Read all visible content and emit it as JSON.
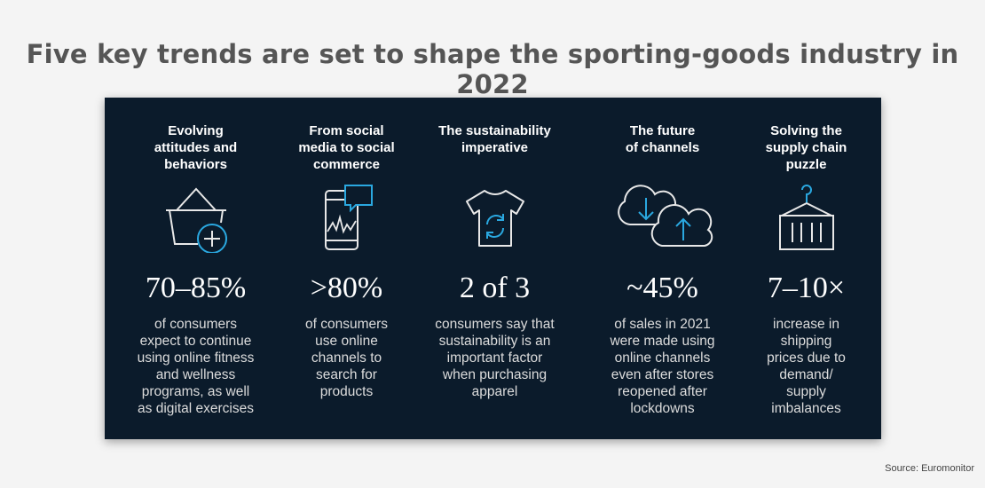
{
  "title": "Five key trends are set to shape the sporting-goods industry in 2022",
  "source": "Source: Euromonitor",
  "colors": {
    "panel_bg": "#0b1b2b",
    "icon_line": "#e8e8e8",
    "icon_accent": "#2aa8e0"
  },
  "trends": [
    {
      "heading_lines": [
        "Evolving",
        "attitudes and",
        "behaviors"
      ],
      "icon": "basket-plus-icon",
      "stat": "70–85%",
      "desc_lines": [
        "of consumers",
        "expect to continue",
        "using online fitness",
        "and wellness",
        "programs, as well",
        "as digital exercises"
      ]
    },
    {
      "heading_lines": [
        "From social",
        "media to social",
        "commerce"
      ],
      "icon": "phone-chat-icon",
      "stat": ">80%",
      "desc_lines": [
        "of consumers",
        "use online",
        "channels to",
        "search for",
        "products"
      ]
    },
    {
      "heading_lines": [
        "The sustainability",
        "imperative"
      ],
      "icon": "tshirt-recycle-icon",
      "stat": "2 of 3",
      "desc_lines": [
        "consumers say that",
        "sustainability is an",
        "important factor",
        "when purchasing",
        "apparel"
      ]
    },
    {
      "heading_lines": [
        "The future",
        "of channels"
      ],
      "icon": "cloud-sync-icon",
      "stat": "~45%",
      "desc_lines": [
        "of sales in 2021",
        "were made using",
        "online channels",
        "even after stores",
        "reopened after",
        "lockdowns"
      ]
    },
    {
      "heading_lines": [
        "Solving the",
        "supply chain",
        "puzzle"
      ],
      "icon": "shipping-container-icon",
      "stat": "7–10×",
      "desc_lines": [
        "increase in",
        "shipping",
        "prices due to",
        "demand/",
        "supply",
        "imbalances"
      ]
    }
  ]
}
